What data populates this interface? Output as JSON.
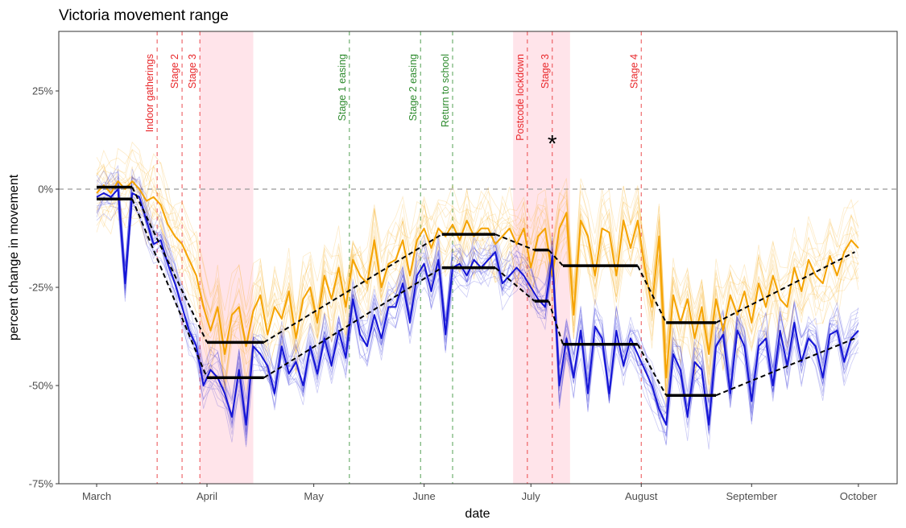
{
  "chart_data": {
    "type": "line",
    "title": "Victoria movement range",
    "xlabel": "date",
    "ylabel": "percent change in movement",
    "x_unit": "days since March 1",
    "xlim": [
      -11,
      224
    ],
    "ylim": [
      -75,
      40
    ],
    "y_ticks": [
      {
        "value": 25,
        "label": "25%"
      },
      {
        "value": 0,
        "label": "0%"
      },
      {
        "value": -25,
        "label": "-25%"
      },
      {
        "value": -50,
        "label": "-50%"
      },
      {
        "value": -75,
        "label": "-75%"
      }
    ],
    "x_ticks": [
      {
        "value": 0,
        "label": "March"
      },
      {
        "value": 31,
        "label": "April"
      },
      {
        "value": 61,
        "label": "May"
      },
      {
        "value": 92,
        "label": "June"
      },
      {
        "value": 122,
        "label": "July"
      },
      {
        "value": 153,
        "label": "August"
      },
      {
        "value": 184,
        "label": "September"
      },
      {
        "value": 214,
        "label": "October"
      }
    ],
    "reference_line": {
      "value": 0,
      "style": "dashed",
      "color": "#999999"
    },
    "shaded_periods": [
      {
        "start": 29,
        "end": 44,
        "color": "#ffe4ea"
      },
      {
        "start": 117,
        "end": 133,
        "color": "#ffe4ea"
      }
    ],
    "events": [
      {
        "day": 17,
        "label": "Indoor gatherings",
        "color": "#e8282b"
      },
      {
        "day": 24,
        "label": "Stage 2",
        "color": "#e8282b"
      },
      {
        "day": 29,
        "label": "Stage 3",
        "color": "#e8282b"
      },
      {
        "day": 71,
        "label": "Stage 1 easing",
        "color": "#2e8b2e"
      },
      {
        "day": 91,
        "label": "Stage 2 easing",
        "color": "#2e8b2e"
      },
      {
        "day": 100,
        "label": "Return to school",
        "color": "#2e8b2e"
      },
      {
        "day": 121,
        "label": "Postcode lockdown",
        "color": "#e8282b"
      },
      {
        "day": 128,
        "label": "Stage 3",
        "color": "#e8282b"
      },
      {
        "day": 153,
        "label": "Stage 4",
        "color": "#e8282b"
      }
    ],
    "annotation": {
      "day": 128,
      "value": 12,
      "text": "*"
    },
    "series": [
      {
        "name": "orange-median",
        "color": "#f5a300",
        "x": [
          0,
          2,
          4,
          6,
          8,
          10,
          12,
          14,
          16,
          18,
          20,
          22,
          24,
          26,
          28,
          30,
          32,
          34,
          36,
          38,
          40,
          42,
          44,
          46,
          48,
          50,
          52,
          54,
          56,
          58,
          60,
          62,
          64,
          66,
          68,
          70,
          72,
          74,
          76,
          78,
          80,
          82,
          84,
          86,
          88,
          90,
          92,
          94,
          96,
          98,
          100,
          102,
          104,
          106,
          108,
          110,
          112,
          114,
          116,
          118,
          120,
          122,
          124,
          126,
          128,
          130,
          132,
          134,
          136,
          138,
          140,
          142,
          144,
          146,
          148,
          150,
          152,
          154,
          156,
          158,
          160,
          162,
          164,
          166,
          168,
          170,
          172,
          174,
          176,
          178,
          180,
          182,
          184,
          186,
          188,
          190,
          192,
          194,
          196,
          198,
          200,
          202,
          204,
          206,
          208,
          210,
          212,
          214
        ],
        "values": [
          -1,
          1,
          -1,
          2,
          0,
          2,
          0,
          -3,
          -2,
          -4,
          -9,
          -12,
          -14,
          -18,
          -22,
          -30,
          -36,
          -30,
          -42,
          -32,
          -30,
          -40,
          -31,
          -27,
          -37,
          -30,
          -33,
          -26,
          -38,
          -28,
          -25,
          -34,
          -22,
          -28,
          -20,
          -30,
          -18,
          -22,
          -24,
          -13,
          -25,
          -19,
          -18,
          -13,
          -22,
          -13,
          -10,
          -15,
          -10,
          -12,
          -9,
          -13,
          -8,
          -12,
          -10,
          -10,
          -14,
          -12,
          -10,
          -14,
          -10,
          -20,
          -12,
          -10,
          -22,
          -10,
          -6,
          -32,
          -8,
          -12,
          -22,
          -10,
          -11,
          -22,
          -8,
          -15,
          -8,
          -20,
          -30,
          -12,
          -48,
          -27,
          -34,
          -28,
          -38,
          -30,
          -42,
          -28,
          -36,
          -27,
          -32,
          -26,
          -34,
          -24,
          -30,
          -22,
          -28,
          -30,
          -20,
          -26,
          -18,
          -22,
          -24,
          -17,
          -22,
          -16,
          -13,
          -15
        ],
        "median": true
      },
      {
        "name": "blue-median",
        "color": "#1414d6",
        "x": [
          0,
          2,
          4,
          6,
          8,
          10,
          12,
          14,
          16,
          18,
          20,
          22,
          24,
          26,
          28,
          30,
          32,
          34,
          36,
          38,
          40,
          42,
          44,
          46,
          48,
          50,
          52,
          54,
          56,
          58,
          60,
          62,
          64,
          66,
          68,
          70,
          72,
          74,
          76,
          78,
          80,
          82,
          84,
          86,
          88,
          90,
          92,
          94,
          96,
          98,
          100,
          102,
          104,
          106,
          108,
          110,
          112,
          114,
          116,
          118,
          120,
          122,
          124,
          126,
          128,
          130,
          132,
          134,
          136,
          138,
          140,
          142,
          144,
          146,
          148,
          150,
          152,
          154,
          156,
          158,
          160,
          162,
          164,
          166,
          168,
          170,
          172,
          174,
          176,
          178,
          180,
          182,
          184,
          186,
          188,
          190,
          192,
          194,
          196,
          198,
          200,
          202,
          204,
          206,
          208,
          210,
          212,
          214
        ],
        "values": [
          -2,
          -1,
          -2,
          0,
          -24,
          -1,
          -2,
          -8,
          -14,
          -13,
          -19,
          -24,
          -30,
          -36,
          -40,
          -50,
          -46,
          -48,
          -52,
          -58,
          -46,
          -60,
          -40,
          -42,
          -45,
          -52,
          -40,
          -47,
          -44,
          -50,
          -40,
          -47,
          -38,
          -45,
          -36,
          -43,
          -28,
          -37,
          -40,
          -32,
          -38,
          -30,
          -30,
          -24,
          -34,
          -22,
          -19,
          -26,
          -18,
          -37,
          -20,
          -19,
          -22,
          -18,
          -20,
          -18,
          -16,
          -24,
          -22,
          -20,
          -22,
          -25,
          -28,
          -30,
          -17,
          -50,
          -38,
          -48,
          -36,
          -52,
          -35,
          -38,
          -52,
          -36,
          -45,
          -38,
          -42,
          -46,
          -50,
          -56,
          -60,
          -42,
          -46,
          -58,
          -44,
          -46,
          -60,
          -40,
          -37,
          -52,
          -36,
          -40,
          -54,
          -40,
          -38,
          -50,
          -36,
          -45,
          -34,
          -44,
          -38,
          -40,
          -48,
          -37,
          -36,
          -44,
          -38,
          -36
        ],
        "median": true
      }
    ],
    "model_segments": [
      {
        "group": "orange",
        "flat": [
          [
            0,
            10,
            0.5
          ],
          [
            31,
            47,
            -39
          ],
          [
            97,
            112,
            -11.5
          ],
          [
            123,
            127,
            -15.5
          ],
          [
            131,
            152,
            -19.5
          ],
          [
            160,
            174,
            -34
          ]
        ],
        "end": [
          213,
          -16
        ]
      },
      {
        "group": "blue",
        "flat": [
          [
            0,
            10,
            -2.5
          ],
          [
            31,
            47,
            -48
          ],
          [
            97,
            112,
            -20
          ],
          [
            123,
            127,
            -28.5
          ],
          [
            131,
            152,
            -39.5
          ],
          [
            160,
            174,
            -52.5
          ]
        ],
        "end": [
          213,
          -38
        ]
      }
    ]
  }
}
